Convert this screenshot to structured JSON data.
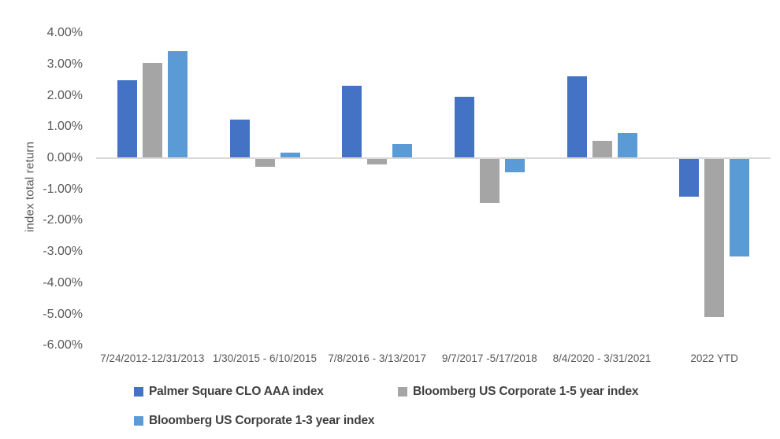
{
  "chart_data": {
    "type": "bar",
    "title": "",
    "xlabel": "",
    "ylabel": "index total return",
    "ylim": [
      -6,
      4
    ],
    "grid": false,
    "legend_position": "bottom",
    "axis_line_color": "#d9d9d9",
    "yticks": [
      {
        "value": 4,
        "label": "4.00%"
      },
      {
        "value": 3,
        "label": "3.00%"
      },
      {
        "value": 2,
        "label": "2.00%"
      },
      {
        "value": 1,
        "label": "1.00%"
      },
      {
        "value": 0,
        "label": "0.00%"
      },
      {
        "value": -1,
        "label": "-1.00%"
      },
      {
        "value": -2,
        "label": "-2.00%"
      },
      {
        "value": -3,
        "label": "-3.00%"
      },
      {
        "value": -4,
        "label": "-4.00%"
      },
      {
        "value": -5,
        "label": "-5.00%"
      },
      {
        "value": -6,
        "label": "-6.00%"
      }
    ],
    "categories": [
      "7/24/2012-12/31/2013",
      "1/30/2015 - 6/10/2015",
      "7/8/2016 - 3/13/2017",
      "9/7/2017 -5/17/2018",
      "8/4/2020 - 3/31/2021",
      "2022 YTD"
    ],
    "series": [
      {
        "name": "Palmer Square CLO AAA index",
        "color": "#4472C4",
        "values": [
          2.47,
          1.2,
          2.28,
          1.95,
          2.6,
          -1.22
        ]
      },
      {
        "name": "Bloomberg US Corporate 1-5 year index",
        "color": "#A5A5A5",
        "values": [
          3.03,
          -0.24,
          -0.18,
          -1.41,
          0.54,
          -5.06
        ]
      },
      {
        "name": "Bloomberg US Corporate 1-3 year index",
        "color": "#5B9BD5",
        "values": [
          3.4,
          0.16,
          0.44,
          -0.44,
          0.77,
          -3.12
        ]
      }
    ]
  }
}
